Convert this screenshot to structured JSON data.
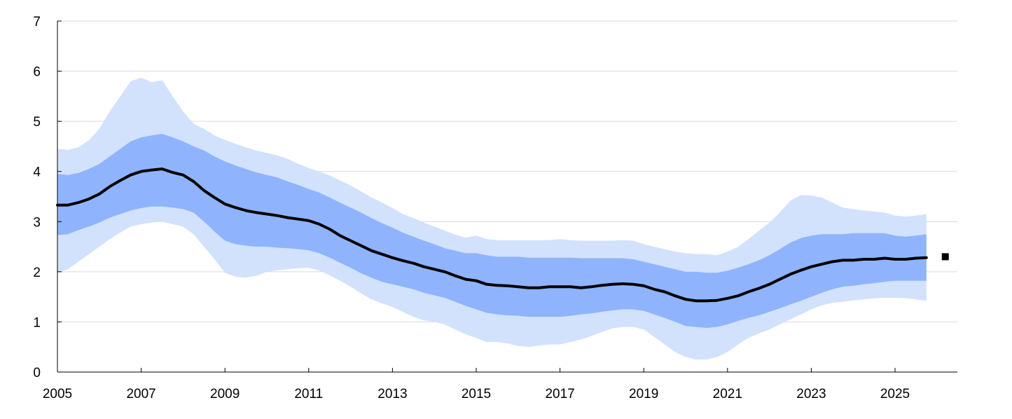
{
  "chart_data": {
    "type": "area",
    "title": "",
    "xlabel": "",
    "ylabel": "",
    "xlim": [
      2005,
      2026.5
    ],
    "ylim": [
      0,
      7
    ],
    "x_ticks": [
      2005,
      2007,
      2009,
      2011,
      2013,
      2015,
      2017,
      2019,
      2021,
      2023,
      2025
    ],
    "x_tick_labels": [
      "2005",
      "2007",
      "2009",
      "2011",
      "2013",
      "2015",
      "2017",
      "2019",
      "2021",
      "2023",
      "2025"
    ],
    "y_ticks": [
      0,
      1,
      2,
      3,
      4,
      5,
      6,
      7
    ],
    "y_tick_labels": [
      "0",
      "1",
      "2",
      "3",
      "4",
      "5",
      "6",
      "7"
    ],
    "grid": "horizontal",
    "legend": "none",
    "colors": {
      "outer_band": "#d2e2fd",
      "inner_band": "#8fb4fd",
      "median": "#000000",
      "marker": "#000000",
      "grid": "#d9d9d9",
      "axis": "#000000"
    },
    "x": [
      2005.0,
      2005.25,
      2005.5,
      2005.75,
      2006.0,
      2006.25,
      2006.5,
      2006.75,
      2007.0,
      2007.25,
      2007.5,
      2007.75,
      2008.0,
      2008.25,
      2008.5,
      2008.75,
      2009.0,
      2009.25,
      2009.5,
      2009.75,
      2010.0,
      2010.25,
      2010.5,
      2010.75,
      2011.0,
      2011.25,
      2011.5,
      2011.75,
      2012.0,
      2012.25,
      2012.5,
      2012.75,
      2013.0,
      2013.25,
      2013.5,
      2013.75,
      2014.0,
      2014.25,
      2014.5,
      2014.75,
      2015.0,
      2015.25,
      2015.5,
      2015.75,
      2016.0,
      2016.25,
      2016.5,
      2016.75,
      2017.0,
      2017.25,
      2017.5,
      2017.75,
      2018.0,
      2018.25,
      2018.5,
      2018.75,
      2019.0,
      2019.25,
      2019.5,
      2019.75,
      2020.0,
      2020.25,
      2020.5,
      2020.75,
      2021.0,
      2021.25,
      2021.5,
      2021.75,
      2022.0,
      2022.25,
      2022.5,
      2022.75,
      2023.0,
      2023.25,
      2023.5,
      2023.75,
      2024.0,
      2024.25,
      2024.5,
      2024.75,
      2025.0,
      2025.25,
      2025.5,
      2025.75
    ],
    "series": [
      {
        "role": "outer_upper",
        "values": [
          4.45,
          4.43,
          4.48,
          4.62,
          4.85,
          5.2,
          5.5,
          5.8,
          5.87,
          5.78,
          5.82,
          5.5,
          5.2,
          4.95,
          4.85,
          4.72,
          4.63,
          4.55,
          4.48,
          4.42,
          4.37,
          4.32,
          4.25,
          4.15,
          4.07,
          4.0,
          3.92,
          3.82,
          3.72,
          3.6,
          3.48,
          3.38,
          3.27,
          3.15,
          3.07,
          2.98,
          2.9,
          2.82,
          2.74,
          2.68,
          2.72,
          2.65,
          2.63,
          2.63,
          2.63,
          2.63,
          2.63,
          2.63,
          2.65,
          2.63,
          2.62,
          2.62,
          2.62,
          2.62,
          2.63,
          2.62,
          2.55,
          2.5,
          2.45,
          2.4,
          2.37,
          2.35,
          2.35,
          2.33,
          2.4,
          2.5,
          2.65,
          2.82,
          2.98,
          3.18,
          3.42,
          3.53,
          3.52,
          3.48,
          3.38,
          3.28,
          3.25,
          3.22,
          3.2,
          3.18,
          3.12,
          3.1,
          3.12,
          3.15
        ]
      },
      {
        "role": "inner_upper",
        "values": [
          3.95,
          3.93,
          3.97,
          4.05,
          4.15,
          4.3,
          4.45,
          4.6,
          4.68,
          4.72,
          4.75,
          4.68,
          4.6,
          4.5,
          4.42,
          4.3,
          4.2,
          4.12,
          4.05,
          3.98,
          3.93,
          3.88,
          3.8,
          3.73,
          3.65,
          3.58,
          3.48,
          3.38,
          3.28,
          3.18,
          3.07,
          2.97,
          2.88,
          2.78,
          2.7,
          2.62,
          2.55,
          2.47,
          2.42,
          2.37,
          2.37,
          2.33,
          2.3,
          2.3,
          2.3,
          2.28,
          2.28,
          2.28,
          2.28,
          2.28,
          2.27,
          2.27,
          2.27,
          2.27,
          2.27,
          2.25,
          2.2,
          2.15,
          2.1,
          2.05,
          2.0,
          2.0,
          1.98,
          1.98,
          2.02,
          2.08,
          2.15,
          2.23,
          2.33,
          2.45,
          2.58,
          2.67,
          2.72,
          2.75,
          2.75,
          2.75,
          2.77,
          2.77,
          2.77,
          2.77,
          2.72,
          2.7,
          2.72,
          2.75
        ]
      },
      {
        "role": "median",
        "values": [
          3.33,
          3.33,
          3.38,
          3.45,
          3.55,
          3.7,
          3.82,
          3.93,
          4.0,
          4.03,
          4.05,
          3.98,
          3.93,
          3.8,
          3.62,
          3.48,
          3.35,
          3.28,
          3.22,
          3.18,
          3.15,
          3.12,
          3.08,
          3.05,
          3.02,
          2.95,
          2.85,
          2.72,
          2.62,
          2.52,
          2.42,
          2.35,
          2.28,
          2.22,
          2.17,
          2.1,
          2.05,
          2.0,
          1.92,
          1.85,
          1.82,
          1.75,
          1.73,
          1.72,
          1.7,
          1.68,
          1.68,
          1.7,
          1.7,
          1.7,
          1.68,
          1.7,
          1.73,
          1.75,
          1.76,
          1.75,
          1.72,
          1.65,
          1.6,
          1.52,
          1.45,
          1.42,
          1.42,
          1.43,
          1.47,
          1.52,
          1.6,
          1.67,
          1.75,
          1.85,
          1.95,
          2.03,
          2.1,
          2.15,
          2.2,
          2.23,
          2.23,
          2.25,
          2.25,
          2.27,
          2.25,
          2.25,
          2.27,
          2.28
        ]
      },
      {
        "role": "inner_lower",
        "values": [
          2.73,
          2.75,
          2.83,
          2.9,
          2.98,
          3.08,
          3.15,
          3.22,
          3.27,
          3.3,
          3.3,
          3.28,
          3.25,
          3.18,
          3.0,
          2.8,
          2.62,
          2.55,
          2.52,
          2.5,
          2.5,
          2.48,
          2.47,
          2.45,
          2.43,
          2.37,
          2.28,
          2.18,
          2.08,
          1.97,
          1.88,
          1.8,
          1.75,
          1.7,
          1.65,
          1.58,
          1.53,
          1.48,
          1.4,
          1.32,
          1.25,
          1.18,
          1.15,
          1.13,
          1.12,
          1.1,
          1.1,
          1.1,
          1.1,
          1.12,
          1.15,
          1.17,
          1.2,
          1.23,
          1.25,
          1.25,
          1.22,
          1.15,
          1.08,
          1.0,
          0.92,
          0.9,
          0.88,
          0.9,
          0.95,
          1.02,
          1.08,
          1.13,
          1.2,
          1.27,
          1.35,
          1.42,
          1.5,
          1.58,
          1.65,
          1.7,
          1.72,
          1.75,
          1.77,
          1.8,
          1.82,
          1.82,
          1.82,
          1.82
        ]
      },
      {
        "role": "outer_lower",
        "values": [
          1.98,
          2.05,
          2.2,
          2.35,
          2.5,
          2.65,
          2.78,
          2.9,
          2.95,
          2.98,
          3.0,
          2.95,
          2.9,
          2.75,
          2.5,
          2.25,
          1.98,
          1.9,
          1.88,
          1.92,
          2.0,
          2.03,
          2.05,
          2.07,
          2.08,
          2.02,
          1.93,
          1.82,
          1.7,
          1.57,
          1.45,
          1.37,
          1.3,
          1.2,
          1.1,
          1.03,
          1.0,
          0.95,
          0.85,
          0.75,
          0.68,
          0.6,
          0.6,
          0.57,
          0.52,
          0.5,
          0.53,
          0.55,
          0.55,
          0.6,
          0.65,
          0.72,
          0.8,
          0.87,
          0.9,
          0.9,
          0.85,
          0.7,
          0.55,
          0.4,
          0.3,
          0.25,
          0.25,
          0.3,
          0.4,
          0.55,
          0.68,
          0.77,
          0.85,
          0.95,
          1.05,
          1.15,
          1.25,
          1.33,
          1.38,
          1.4,
          1.43,
          1.45,
          1.47,
          1.48,
          1.48,
          1.47,
          1.45,
          1.42
        ]
      }
    ],
    "marker": {
      "x": 2026.2,
      "y": 2.3
    }
  }
}
